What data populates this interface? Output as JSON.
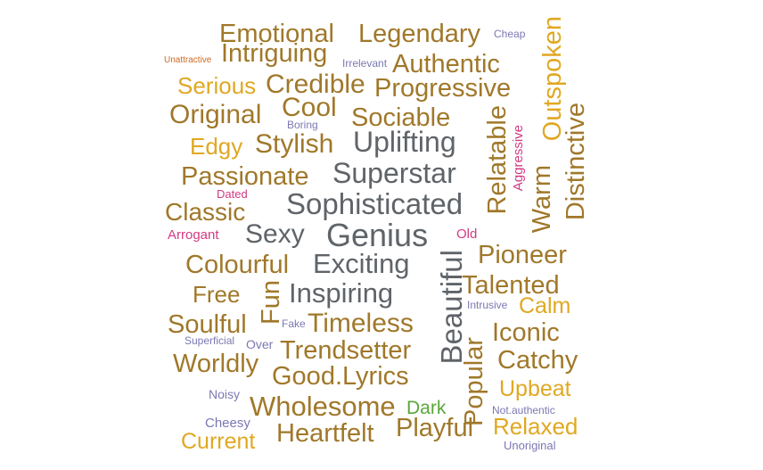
{
  "words": {
    "emotional": "Emotional",
    "legendary": "Legendary",
    "cheap": "Cheap",
    "outspoken": "Outspoken",
    "unattractive": "Unattractive",
    "intriguing": "Intriguing",
    "irrelevant": "Irrelevant",
    "authentic": "Authentic",
    "serious": "Serious",
    "credible": "Credible",
    "progressive": "Progressive",
    "original": "Original",
    "cool": "Cool",
    "sociable": "Sociable",
    "boring": "Boring",
    "relatable": "Relatable",
    "distinctive": "Distinctive",
    "edgy": "Edgy",
    "stylish": "Stylish",
    "uplifting": "Uplifting",
    "aggressive": "Aggressive",
    "warm": "Warm",
    "passionate": "Passionate",
    "superstar": "Superstar",
    "dated": "Dated",
    "sophisticated": "Sophisticated",
    "classic": "Classic",
    "arrogant": "Arrogant",
    "sexy": "Sexy",
    "genius": "Genius",
    "old": "Old",
    "colourful": "Colourful",
    "exciting": "Exciting",
    "pioneer": "Pioneer",
    "beautiful": "Beautiful",
    "free": "Free",
    "fun": "Fun",
    "inspiring": "Inspiring",
    "talented": "Talented",
    "intrusive": "Intrusive",
    "calm": "Calm",
    "soulful": "Soulful",
    "fake": "Fake",
    "timeless": "Timeless",
    "iconic": "Iconic",
    "superficial": "Superficial",
    "over": "Over",
    "trendsetter": "Trendsetter",
    "popular": "Popular",
    "worldly": "Worldly",
    "good_lyrics": "Good.Lyrics",
    "catchy": "Catchy",
    "noisy": "Noisy",
    "upbeat": "Upbeat",
    "wholesome": "Wholesome",
    "dark": "Dark",
    "not_authentic": "Not.authentic",
    "cheesy": "Cheesy",
    "relaxed": "Relaxed",
    "current": "Current",
    "heartfelt": "Heartfelt",
    "playful": "Playful",
    "unoriginal": "Unoriginal"
  },
  "colors": {
    "gold": "#a0782a",
    "grey": "#5f6469",
    "yellow": "#e0a822",
    "purple": "#7b78b2",
    "magenta": "#d23a82",
    "orange": "#d06a22",
    "green": "#5aa838"
  }
}
